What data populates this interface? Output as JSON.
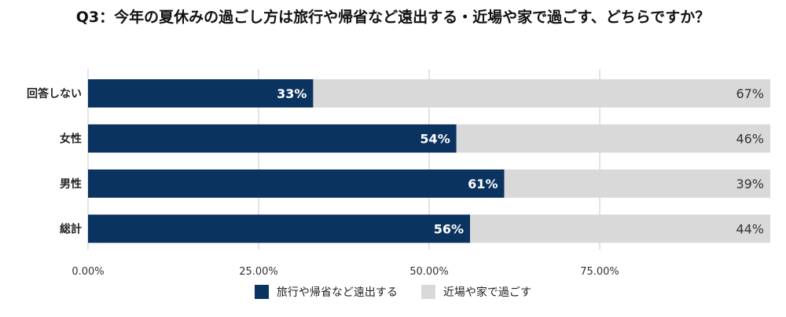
{
  "chart_data": {
    "type": "bar",
    "orientation": "horizontal",
    "stacked": true,
    "title": "Q3：今年の夏休みの過ごし方は旅行や帰省など遠出する・近場や家で過ごす、どちらですか？",
    "categories": [
      "回答しない",
      "女性",
      "男性",
      "総計"
    ],
    "series": [
      {
        "name": "旅行や帰省など遠出する",
        "color": "#0b3360",
        "values": [
          0.33,
          0.54,
          0.61,
          0.56
        ],
        "labels": [
          "33%",
          "54%",
          "61%",
          "56%"
        ]
      },
      {
        "name": "近場や家で過ごす",
        "color": "#d9d9d9",
        "values": [
          0.67,
          0.46,
          0.39,
          0.44
        ],
        "labels": [
          "67%",
          "46%",
          "39%",
          "44%"
        ]
      }
    ],
    "xlim": [
      0,
      1
    ],
    "xticks": [
      0,
      0.25,
      0.5,
      0.75
    ],
    "xtick_labels": [
      "0.00%",
      "25.00%",
      "50.00%",
      "75.00%"
    ],
    "grid": true,
    "legend_position": "bottom"
  }
}
